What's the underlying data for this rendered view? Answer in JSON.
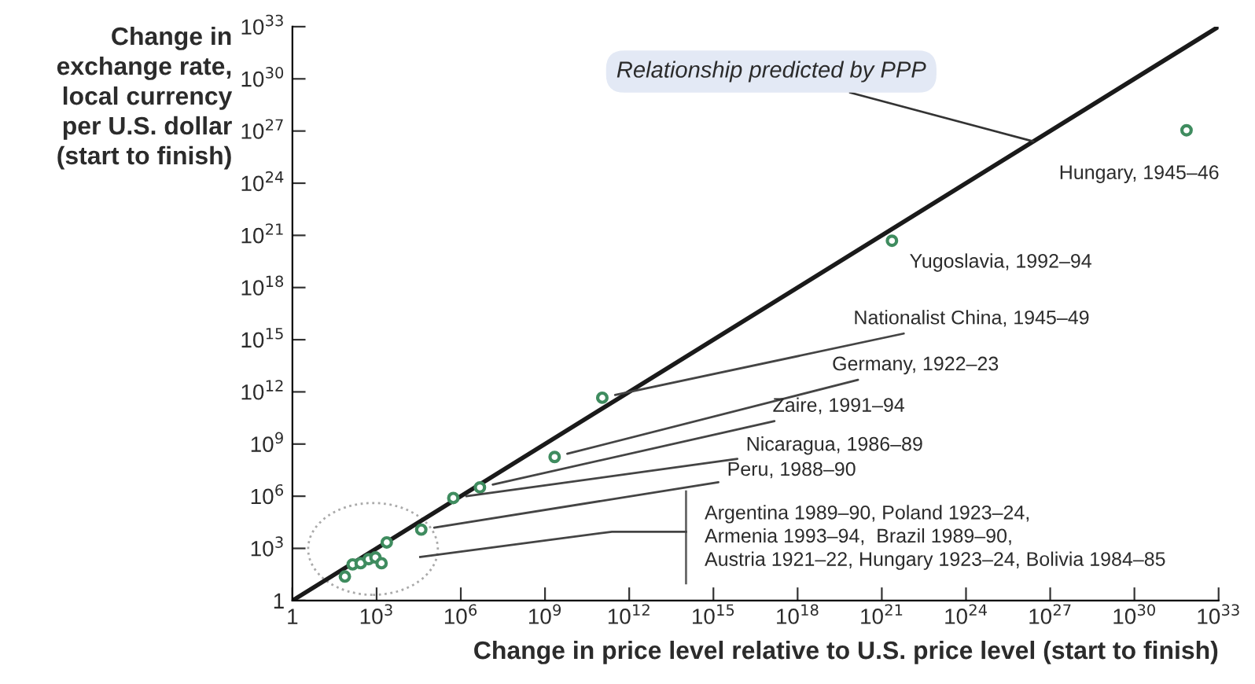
{
  "chart_data": {
    "type": "scatter",
    "xlabel": "Change in price level relative to U.S. price level (start to finish)",
    "ylabel": "Change in\nexchange rate,\nlocal currency\nper U.S. dollar\n(start to finish)",
    "log": "xy",
    "xlim": [
      1,
      1e+33
    ],
    "ylim": [
      1,
      1e+33
    ],
    "xticks": [
      1,
      {
        "value": 1000.0,
        "label": "10$^{3}$"
      },
      {
        "value": 1000000.0,
        "label": "10$^{6}$"
      },
      {
        "value": 1000000000.0,
        "label": "10$^{9}$"
      },
      {
        "value": 1000000000000.0,
        "label": "10$^{12}$"
      },
      {
        "value": 1000000000000000.0,
        "label": "10$^{15}$"
      },
      {
        "value": 1e+18,
        "label": "10$^{18}$"
      },
      {
        "value": 1e+21,
        "label": "10$^{21}$"
      },
      {
        "value": 1e+24,
        "label": "10$^{24}$"
      },
      {
        "value": 1e+27,
        "label": "10$^{27}$"
      },
      {
        "value": 1e+30,
        "label": "10$^{30}$"
      },
      {
        "value": 1e+33,
        "label": "10$^{33}$"
      }
    ],
    "yticks": [
      1,
      {
        "value": 1000.0,
        "label": "10$^{3}$"
      },
      {
        "value": 1000000.0,
        "label": "10$^{6}$"
      },
      {
        "value": 1000000000.0,
        "label": "10$^{9}$"
      },
      {
        "value": 1000000000000.0,
        "label": "10$^{12}$"
      },
      {
        "value": 1000000000000000.0,
        "label": "10$^{15}$"
      },
      {
        "value": 1e+18,
        "label": "10$^{18}$"
      },
      {
        "value": 1e+21,
        "label": "10$^{21}$"
      },
      {
        "value": 1e+24,
        "label": "10$^{24}$"
      },
      {
        "value": 1e+27,
        "label": "10$^{27}$"
      },
      {
        "value": 1e+30,
        "label": "10$^{30}$"
      },
      {
        "value": 1e+33,
        "label": "10$^{33}$"
      }
    ],
    "series": [
      {
        "type": "line",
        "name": "Relationship predicted by PPP",
        "color": "#1a1a1a",
        "marker": "none",
        "x": [
          1,
          1e+33
        ],
        "values": [
          1,
          1e+33
        ]
      },
      {
        "color": "#3f8c5f",
        "marker": "circle",
        "x": [
          74,
          140.0,
          270.0,
          520.0,
          910.0,
          1500.0,
          2300.0,
          39000.0,
          540000.0,
          4800000.0,
          2200000000.0,
          110000000000.0,
          2.3e+21,
          7.2e+31
        ],
        "values": [
          24,
          120.0,
          140.0,
          240.0,
          300.0,
          140.0,
          2200.0,
          12000.0,
          790000.0,
          3200000.0,
          180000000.0,
          460000000000.0,
          4.9e+20,
          1.1e+27
        ]
      }
    ],
    "annotations": [
      {
        "text": "Hungary, 1945–46",
        "x": 7.2e+31,
        "y": 1.1e+27
      },
      {
        "text": "Yugoslavia, 1992–94",
        "x": 2.3e+21,
        "y": 4.9e+20
      },
      {
        "text": "Nationalist China, 1945–49",
        "x": 110000000000.0,
        "y": 460000000000.0
      },
      {
        "text": "Germany, 1922–23",
        "x": 2200000000.0,
        "y": 180000000.0
      },
      {
        "text": "Zaire, 1991–94",
        "x": 4800000.0,
        "y": 3200000.0
      },
      {
        "text": "Nicaragua, 1986–89",
        "x": 540000.0,
        "y": 790000.0
      },
      {
        "text": "Peru, 1988–90",
        "x": 39000.0,
        "y": 12000.0
      },
      "Argentina 1989–90, Poland 1923–24,\nArmenia 1993–94,  Brazil 1989–90,\nAustria 1921–22, Hungary 1923–24, Bolivia 1984–85"
    ]
  }
}
